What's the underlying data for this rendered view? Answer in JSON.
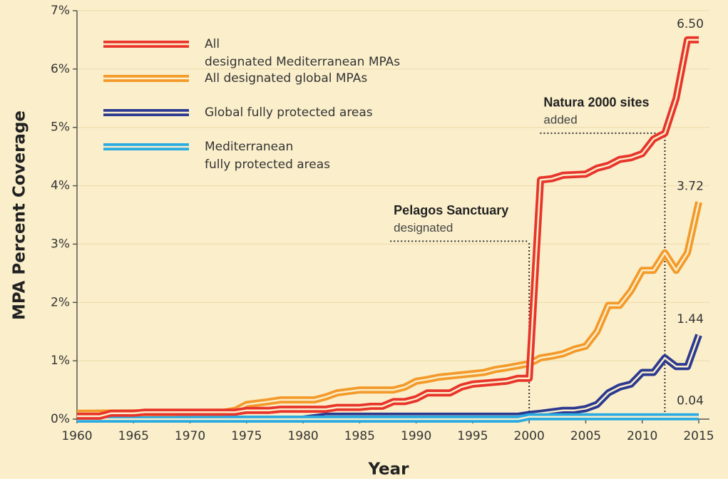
{
  "chart_data": {
    "type": "line",
    "x_label": "Year",
    "y_label": "MPA Percent Coverage",
    "xlim": [
      1960,
      2015
    ],
    "xticks": [
      1960,
      1965,
      1970,
      1975,
      1980,
      1985,
      1990,
      1995,
      2000,
      2005,
      2010,
      2015
    ],
    "ylim": [
      0,
      7
    ],
    "yticks": [
      {
        "value": 0,
        "label": "0%"
      },
      {
        "value": 1,
        "label": "1%"
      },
      {
        "value": 2,
        "label": "2%"
      },
      {
        "value": 3,
        "label": "3%"
      },
      {
        "value": 4,
        "label": "4%"
      },
      {
        "value": 5,
        "label": "5%"
      },
      {
        "value": 6,
        "label": "6%"
      },
      {
        "value": 7,
        "label": "7%"
      }
    ],
    "grid": true,
    "legend": "upper left",
    "series": [
      {
        "name": "All designated Mediterranean MPAs",
        "color": "#e8352b",
        "end_label": "6.50",
        "x": [
          1960,
          1962,
          1963,
          1965,
          1966,
          1974,
          1975,
          1977,
          1978,
          1982,
          1983,
          1985,
          1986,
          1987,
          1988,
          1989,
          1990,
          1991,
          1993,
          1994,
          1995,
          1998,
          1999,
          2000,
          2001,
          2002,
          2003,
          2005,
          2006,
          2007,
          2008,
          2009,
          2010,
          2011,
          2012,
          2013,
          2014,
          2015
        ],
        "values": [
          0.05,
          0.05,
          0.1,
          0.1,
          0.12,
          0.12,
          0.15,
          0.15,
          0.17,
          0.17,
          0.2,
          0.2,
          0.22,
          0.22,
          0.3,
          0.3,
          0.35,
          0.45,
          0.45,
          0.55,
          0.6,
          0.65,
          0.7,
          0.7,
          4.1,
          4.12,
          4.18,
          4.2,
          4.3,
          4.35,
          4.45,
          4.48,
          4.55,
          4.8,
          4.9,
          5.5,
          6.5,
          6.5
        ]
      },
      {
        "name": "All designated global MPAs",
        "color": "#f39a2b",
        "end_label": "3.72",
        "x": [
          1960,
          1973,
          1974,
          1975,
          1977,
          1978,
          1981,
          1982,
          1983,
          1985,
          1988,
          1989,
          1990,
          1991,
          1992,
          1995,
          1996,
          1997,
          1998,
          2000,
          2001,
          2002,
          2003,
          2004,
          2005,
          2006,
          2007,
          2008,
          2009,
          2010,
          2011,
          2012,
          2013,
          2014,
          2015
        ],
        "values": [
          0.1,
          0.12,
          0.15,
          0.25,
          0.3,
          0.33,
          0.33,
          0.38,
          0.45,
          0.5,
          0.5,
          0.55,
          0.65,
          0.68,
          0.72,
          0.78,
          0.8,
          0.85,
          0.88,
          0.95,
          1.05,
          1.08,
          1.12,
          1.2,
          1.25,
          1.5,
          1.95,
          1.95,
          2.2,
          2.55,
          2.55,
          2.85,
          2.55,
          2.85,
          3.72
        ]
      },
      {
        "name": "Global fully protected areas",
        "color": "#2b3990",
        "end_label": "1.44",
        "x": [
          1960,
          1980,
          1982,
          1999,
          2000,
          2001,
          2003,
          2004,
          2005,
          2006,
          2007,
          2008,
          2009,
          2010,
          2011,
          2012,
          2013,
          2014,
          2015
        ],
        "values": [
          0,
          0,
          0.05,
          0.05,
          0.08,
          0.1,
          0.15,
          0.15,
          0.18,
          0.25,
          0.45,
          0.55,
          0.6,
          0.8,
          0.8,
          1.05,
          0.9,
          0.9,
          1.44
        ]
      },
      {
        "name": "Mediterranean fully protected areas",
        "color": "#29abe2",
        "end_label": "0.04",
        "x": [
          1960,
          1999,
          2000,
          2015
        ],
        "values": [
          0,
          0,
          0.04,
          0.04
        ]
      }
    ],
    "annotations": [
      {
        "title": "Pelagos Sanctuary",
        "text": "designated",
        "x": 2000,
        "y": 3.05
      },
      {
        "title": "Natura 2000 sites",
        "text": "added",
        "x": 2012,
        "y": 4.9
      }
    ]
  }
}
